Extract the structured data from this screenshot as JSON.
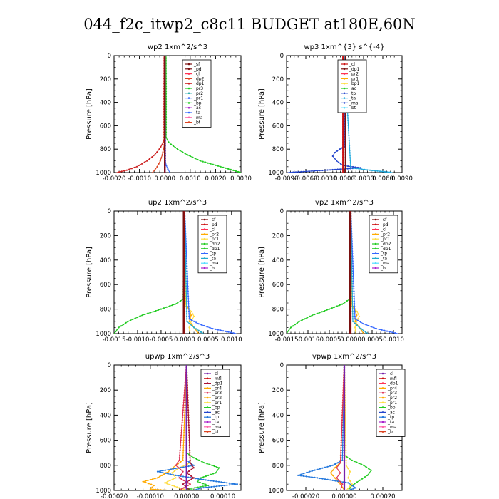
{
  "figure_title": "044_f2c_itwp2_c8c11  BUDGET at180E,60N",
  "chart_data": [
    {
      "id": "wp2",
      "type": "line",
      "title": "wp2  1xm^2/s^3",
      "ylabel": "Pressure [hPa]",
      "xlim": [
        -0.002,
        0.003
      ],
      "ylim": [
        1000,
        0
      ],
      "xticks": [
        -0.002,
        -0.001,
        0.0,
        0.001,
        0.002,
        0.003
      ],
      "xtick_labels": [
        "-0.0020",
        "-0.0010",
        "0.0000",
        "0.0010",
        "0.0020",
        "0.0030"
      ],
      "yticks": [
        0,
        200,
        400,
        600,
        800,
        1000
      ],
      "legend": [
        "_sf",
        "_pd",
        "_cl",
        "_dp2",
        "_dp1",
        "_pr3",
        "_pr2",
        "_pr1",
        "_bp",
        "_ac",
        "_ta",
        "_ma",
        "_bt"
      ],
      "series": [
        {
          "name": "_bp",
          "color": "#22cc22",
          "p": [
            0,
            700,
            740,
            760,
            800,
            850,
            900,
            950,
            1000
          ],
          "v": [
            5e-05,
            5e-05,
            0.00015,
            0.00025,
            0.0005,
            0.0009,
            0.0014,
            0.0022,
            0.003
          ]
        },
        {
          "name": "_dp1",
          "color": "#cc2222",
          "p": [
            0,
            720,
            760,
            800,
            850,
            900,
            950,
            980,
            1000
          ],
          "v": [
            -3e-05,
            -3e-05,
            -0.0001,
            -0.00022,
            -0.0004,
            -0.0007,
            -0.0011,
            -0.0015,
            -0.0019
          ]
        },
        {
          "name": "_dp2",
          "color": "#dd4422",
          "p": [
            0,
            760,
            800,
            850,
            900,
            950,
            980,
            1000
          ],
          "v": [
            0.0,
            -2e-05,
            -5e-05,
            -0.0001,
            -0.00018,
            -0.0003,
            -0.0004,
            -0.0005
          ]
        },
        {
          "name": "_ta",
          "color": "#3366ff",
          "p": [
            0,
            900,
            940,
            970,
            1000
          ],
          "v": [
            0.0,
            2e-05,
            6e-05,
            0.00012,
            0.0002
          ]
        },
        {
          "name": "_ac",
          "color": "#aa22cc",
          "p": [
            0,
            1000
          ],
          "v": [
            0.0,
            0.0
          ]
        },
        {
          "name": "_pd",
          "color": "#7a1010",
          "p": [
            0,
            1000
          ],
          "v": [
            0.0,
            0.0
          ]
        }
      ]
    },
    {
      "id": "wp3",
      "type": "line",
      "title": "wp3  1xm^{3} s^{-4}",
      "ylabel": "Pressure [hPa]",
      "xlim": [
        -0.009,
        0.009
      ],
      "ylim": [
        1000,
        0
      ],
      "xticks": [
        -0.009,
        -0.006,
        -0.003,
        0.0,
        0.003,
        0.006,
        0.009
      ],
      "xtick_labels": [
        "-0.0090",
        "-0.0060",
        "-0.0030",
        "0.0000",
        "0.0030",
        "0.0060",
        "0.0090"
      ],
      "yticks": [
        0,
        200,
        400,
        600,
        800,
        1000
      ],
      "legend": [
        "_cl",
        "_dp1",
        "_pr2",
        "_pr1",
        "_bp1",
        "_ac",
        "_tp",
        "_ta",
        "_ma",
        "_bt"
      ],
      "series": [
        {
          "name": "_tp",
          "color": "#2244cc",
          "p": [
            0,
            780,
            800,
            830,
            860,
            900,
            940,
            960,
            980,
            1000
          ],
          "v": [
            0.0,
            0.0,
            -0.0007,
            -0.0015,
            -0.0018,
            -0.0012,
            -0.0002,
            0.0025,
            -0.003,
            -0.0088
          ]
        },
        {
          "name": "_ta",
          "color": "#22aadd",
          "p": [
            0,
            960,
            980,
            1000
          ],
          "v": [
            0.0,
            0.001,
            0.004,
            0.0075
          ]
        },
        {
          "name": "_cl",
          "color": "#cc1111",
          "p": [
            0,
            1000
          ],
          "v": [
            -0.0002,
            -0.0002
          ]
        },
        {
          "name": "_dp1",
          "color": "#7a1010",
          "p": [
            0,
            1000
          ],
          "v": [
            0.0002,
            0.0002
          ]
        }
      ]
    },
    {
      "id": "up2",
      "type": "line",
      "title": "up2  1xm^2/s^3",
      "ylabel": "Pressure [hPa]",
      "xlim": [
        -0.0015,
        0.0012
      ],
      "ylim": [
        1000,
        0
      ],
      "xticks": [
        -0.0015,
        -0.001,
        -0.0005,
        0.0,
        0.0005,
        0.001
      ],
      "xtick_labels": [
        "-0.0015",
        "-0.0010",
        "-0.0005",
        "0.0000",
        "0.0005",
        "0.0010"
      ],
      "yticks": [
        0,
        200,
        400,
        600,
        800,
        1000
      ],
      "legend": [
        "_sf",
        "_pd",
        "_cl",
        "_pr2",
        "_pr1",
        "_dp2",
        "_dp1",
        "_tp",
        "_ta",
        "_ma",
        "_bt"
      ],
      "series": [
        {
          "name": "_dp1",
          "color": "#22cc22",
          "p": [
            0,
            720,
            760,
            800,
            850,
            900,
            950,
            1000
          ],
          "v": [
            0.0,
            -3e-05,
            -0.0002,
            -0.0005,
            -0.0009,
            -0.0012,
            -0.0014,
            -0.0015
          ]
        },
        {
          "name": "_pr2",
          "color": "#ffaa00",
          "p": [
            0,
            760,
            800,
            850,
            900,
            950,
            1000
          ],
          "v": [
            0.0,
            2e-05,
            0.0001,
            0.00014,
            0.0001,
            0.0002,
            0.0003
          ]
        },
        {
          "name": "_pr1",
          "color": "#ffdd44",
          "p": [
            0,
            780,
            820,
            860,
            900,
            950,
            1000
          ],
          "v": [
            0.0,
            3e-05,
            0.00015,
            0.0002,
            0.00014,
            0.0001,
            0.00012
          ]
        },
        {
          "name": "_tp",
          "color": "#3366ff",
          "p": [
            0,
            880,
            920,
            960,
            1000
          ],
          "v": [
            0.0,
            0.0001,
            0.0003,
            0.0006,
            0.0011
          ]
        },
        {
          "name": "_ta",
          "color": "#22aacc",
          "p": [
            0,
            900,
            950,
            1000
          ],
          "v": [
            0.0,
            5e-05,
            0.0002,
            0.0004
          ]
        },
        {
          "name": "_pd",
          "color": "#cc1111",
          "p": [
            0,
            1000
          ],
          "v": [
            0.0,
            0.0
          ]
        },
        {
          "name": "_sf",
          "color": "#7a1010",
          "p": [
            0,
            1000
          ],
          "v": [
            -2e-05,
            -2e-05
          ]
        }
      ]
    },
    {
      "id": "vp2",
      "type": "line",
      "title": "vp2  1xm^2/s^3",
      "ylabel": "Pressure [hPa]",
      "xlim": [
        -0.0015,
        0.0012
      ],
      "ylim": [
        1000,
        0
      ],
      "xticks": [
        -0.0015,
        -0.001,
        -0.0005,
        0.0,
        0.0005,
        0.001
      ],
      "xtick_labels": [
        "-0.0015",
        "-0.0010",
        "-0.0005",
        "0.0000",
        "0.0005",
        "0.0010"
      ],
      "yticks": [
        0,
        200,
        400,
        600,
        800,
        1000
      ],
      "legend": [
        "_sf",
        "_pd",
        "_cl",
        "_pr2",
        "_pr1",
        "_dp2",
        "_dp1",
        "_tp",
        "_ta",
        "_ma",
        "_bt"
      ],
      "series": [
        {
          "name": "_dp1",
          "color": "#22cc22",
          "p": [
            0,
            720,
            760,
            800,
            850,
            900,
            950,
            1000
          ],
          "v": [
            0.0,
            -3e-05,
            -0.0002,
            -0.0005,
            -0.0009,
            -0.0012,
            -0.0014,
            -0.0015
          ]
        },
        {
          "name": "_pr2",
          "color": "#ffaa00",
          "p": [
            0,
            760,
            800,
            850,
            900,
            950,
            1000
          ],
          "v": [
            0.0,
            2e-05,
            0.0001,
            0.00014,
            0.0001,
            0.0002,
            0.0003
          ]
        },
        {
          "name": "_pr1",
          "color": "#ffdd44",
          "p": [
            0,
            780,
            820,
            860,
            900,
            950,
            1000
          ],
          "v": [
            0.0,
            3e-05,
            0.00015,
            0.0002,
            0.00014,
            0.0001,
            0.00012
          ]
        },
        {
          "name": "_tp",
          "color": "#3366ff",
          "p": [
            0,
            880,
            920,
            960,
            1000
          ],
          "v": [
            0.0,
            0.0001,
            0.0003,
            0.0006,
            0.0011
          ]
        },
        {
          "name": "_ta",
          "color": "#22aacc",
          "p": [
            0,
            900,
            950,
            1000
          ],
          "v": [
            0.0,
            5e-05,
            0.0002,
            0.0004
          ]
        },
        {
          "name": "_pd",
          "color": "#cc1111",
          "p": [
            0,
            1000
          ],
          "v": [
            0.0,
            0.0
          ]
        },
        {
          "name": "_sf",
          "color": "#7a1010",
          "p": [
            0,
            1000
          ],
          "v": [
            -2e-05,
            -2e-05
          ]
        }
      ]
    },
    {
      "id": "upwp",
      "type": "line",
      "title": "upwp  1xm^2/s^3",
      "ylabel": "Pressure [hPa]",
      "xlim": [
        -0.0002,
        0.00015
      ],
      "ylim": [
        1000,
        0
      ],
      "xticks": [
        -0.0002,
        -0.0001,
        0.0,
        0.0001
      ],
      "xtick_labels": [
        "-0.00020",
        "-0.00010",
        "0.00000",
        "0.00010"
      ],
      "yticks": [
        0,
        200,
        400,
        600,
        800,
        1000
      ],
      "legend": [
        "_cl",
        "_mfl",
        "_dp1",
        "_pr4",
        "_pr3",
        "_pr2",
        "_pr1",
        "_bp",
        "_ac",
        "_tp",
        "_ta",
        "_ma",
        "_bt"
      ],
      "series": [
        {
          "name": "_bp",
          "color": "#22cc22",
          "p": [
            0,
            700,
            740,
            780,
            820,
            860,
            900,
            930,
            960,
            990,
            1000
          ],
          "v": [
            0.0,
            0.0,
            2e-05,
            5e-05,
            9e-05,
            8e-05,
            4e-05,
            3e-05,
            6e-05,
            0.0,
            3e-05
          ]
        },
        {
          "name": "_pr2",
          "color": "#ffaa00",
          "p": [
            0,
            760,
            800,
            850,
            900,
            930,
            960,
            990,
            1000
          ],
          "v": [
            0.0,
            -1e-05,
            -3e-05,
            -5e-05,
            -8e-05,
            -0.00012,
            -9e-05,
            -0.0001,
            -5e-05
          ]
        },
        {
          "name": "_pr1",
          "color": "#ffdd44",
          "p": [
            0,
            780,
            820,
            860,
            900,
            940,
            980,
            1000
          ],
          "v": [
            0.0,
            1e-05,
            -2e-05,
            -4e-05,
            -3e-05,
            -6e-05,
            -2e-05,
            0.0
          ]
        },
        {
          "name": "_tp",
          "color": "#2277dd",
          "p": [
            0,
            760,
            800,
            850,
            880,
            920,
            950,
            980,
            1000
          ],
          "v": [
            0.0,
            0.0,
            2e-05,
            -8e-05,
            -3e-05,
            6e-05,
            0.00014,
            4e-05,
            2e-05
          ]
        },
        {
          "name": "_pr3",
          "color": "#dd3355",
          "p": [
            0,
            760,
            800,
            850,
            900,
            950,
            1000
          ],
          "v": [
            0.0,
            -2e-05,
            -3e-05,
            -1e-05,
            -2e-05,
            1e-05,
            -2e-05
          ]
        },
        {
          "name": "_dp1",
          "color": "#aa1133",
          "p": [
            0,
            780,
            820,
            860,
            900,
            950,
            1000
          ],
          "v": [
            0.0,
            1e-05,
            2e-05,
            0.0,
            2e-05,
            -1e-05,
            1e-05
          ]
        },
        {
          "name": "_cl",
          "color": "#7722aa",
          "p": [
            0,
            1000
          ],
          "v": [
            0.0,
            0.0
          ]
        }
      ]
    },
    {
      "id": "vpwp",
      "type": "line",
      "title": "vpwp  1xm^2/s^3",
      "ylabel": "Pressure [hPa]",
      "xlim": [
        -0.0003,
        0.0003
      ],
      "ylim": [
        1000,
        0
      ],
      "xticks": [
        -0.0002,
        0.0,
        0.0002
      ],
      "xtick_labels": [
        "-0.00020",
        "0.00000",
        "0.00020"
      ],
      "yticks": [
        0,
        200,
        400,
        600,
        800,
        1000
      ],
      "legend": [
        "_cl",
        "_mfl",
        "_dp1",
        "_pr4",
        "_pr3",
        "_pr2",
        "_pr1",
        "_bp",
        "_ac",
        "_tp",
        "_ta",
        "_ma",
        "_bt"
      ],
      "series": [
        {
          "name": "_bp",
          "color": "#22cc22",
          "p": [
            0,
            720,
            760,
            800,
            840,
            880,
            920,
            960,
            1000
          ],
          "v": [
            0.0,
            0.0,
            4e-05,
            0.0001,
            0.00014,
            0.00012,
            8e-05,
            4e-05,
            2e-05
          ]
        },
        {
          "name": "_pr2",
          "color": "#ffaa00",
          "p": [
            0,
            780,
            820,
            860,
            900,
            950,
            1000
          ],
          "v": [
            0.0,
            -2e-05,
            -5e-05,
            -7e-05,
            -5e-05,
            -2e-05,
            0.0
          ]
        },
        {
          "name": "_tp",
          "color": "#2277dd",
          "p": [
            0,
            760,
            800,
            850,
            880,
            900,
            940,
            980,
            1000
          ],
          "v": [
            0.0,
            -1e-05,
            -6e-05,
            -0.00018,
            -0.00024,
            -0.00014,
            2e-05,
            6e-05,
            2e-05
          ]
        },
        {
          "name": "_pr1",
          "color": "#ffdd44",
          "p": [
            0,
            800,
            850,
            900,
            950,
            1000
          ],
          "v": [
            0.0,
            1e-05,
            3e-05,
            2e-05,
            4e-05,
            1e-05
          ]
        },
        {
          "name": "_pr3",
          "color": "#dd3355",
          "p": [
            0,
            780,
            820,
            860,
            900,
            950,
            1000
          ],
          "v": [
            0.0,
            -2e-05,
            -4e-05,
            -2e-05,
            -4e-05,
            -1e-05,
            -2e-05
          ]
        },
        {
          "name": "_cl",
          "color": "#7722aa",
          "p": [
            0,
            1000
          ],
          "v": [
            0.0,
            0.0
          ]
        }
      ]
    }
  ]
}
